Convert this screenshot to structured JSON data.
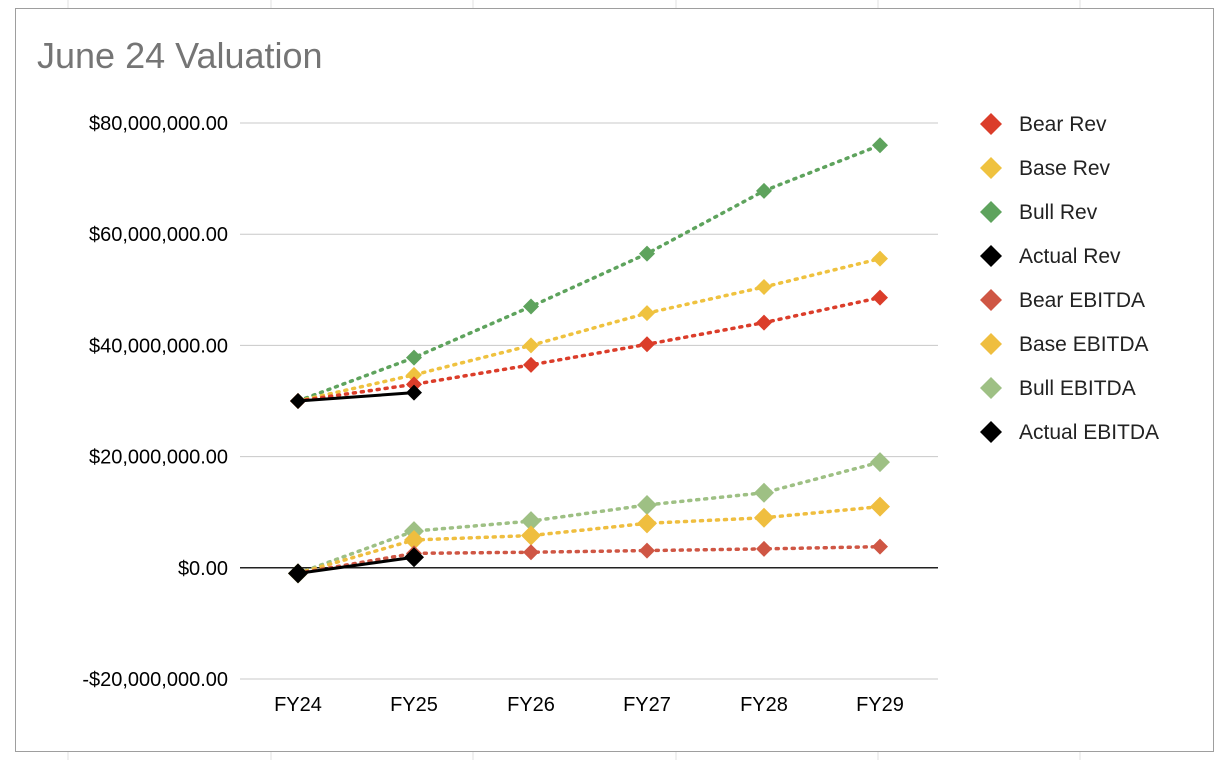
{
  "chart_data": {
    "type": "line",
    "title": "June 24 Valuation",
    "xlabel": "",
    "ylabel": "",
    "categories": [
      "FY24",
      "FY25",
      "FY26",
      "FY27",
      "FY28",
      "FY29"
    ],
    "ylim": [
      -20000000,
      80000000
    ],
    "yticks": [
      {
        "value": 80000000,
        "label": "$80,000,000.00"
      },
      {
        "value": 60000000,
        "label": "$60,000,000.00"
      },
      {
        "value": 40000000,
        "label": "$40,000,000.00"
      },
      {
        "value": 20000000,
        "label": "$20,000,000.00"
      },
      {
        "value": 0,
        "label": "$0.00"
      },
      {
        "value": -20000000,
        "label": "-$20,000,000.00"
      }
    ],
    "grid": true,
    "legend_position": "right",
    "series": [
      {
        "name": "Bear Rev",
        "color": "#db3d2a",
        "style": "dotted",
        "marker": "small",
        "values": [
          30000000,
          33000000,
          36500000,
          40200000,
          44100000,
          48600000
        ]
      },
      {
        "name": "Base Rev",
        "color": "#efc23f",
        "style": "dotted",
        "marker": "small",
        "values": [
          30000000,
          34700000,
          40000000,
          45800000,
          50500000,
          55600000
        ]
      },
      {
        "name": "Bull Rev",
        "color": "#5ea35d",
        "style": "dotted",
        "marker": "small",
        "values": [
          30000000,
          37800000,
          47000000,
          56500000,
          67800000,
          76000000
        ]
      },
      {
        "name": "Actual Rev",
        "color": "#000000",
        "style": "solid",
        "marker": "small",
        "values": [
          30000000,
          31500000,
          null,
          null,
          null,
          null
        ]
      },
      {
        "name": "Bear EBITDA",
        "color": "#cf5644",
        "style": "dotted",
        "marker": "small",
        "values": [
          -1000000,
          2600000,
          2800000,
          3100000,
          3400000,
          3800000
        ]
      },
      {
        "name": "Base EBITDA",
        "color": "#efbe3f",
        "style": "dotted",
        "marker": "large",
        "values": [
          -1000000,
          5000000,
          5800000,
          8000000,
          9000000,
          11000000
        ]
      },
      {
        "name": "Bull EBITDA",
        "color": "#9ec084",
        "style": "dotted",
        "marker": "large",
        "values": [
          -1000000,
          6600000,
          8400000,
          11300000,
          13500000,
          19000000
        ]
      },
      {
        "name": "Actual EBITDA",
        "color": "#000000",
        "style": "solid",
        "marker": "large",
        "values": [
          -1000000,
          1900000,
          null,
          null,
          null,
          null
        ]
      }
    ]
  }
}
